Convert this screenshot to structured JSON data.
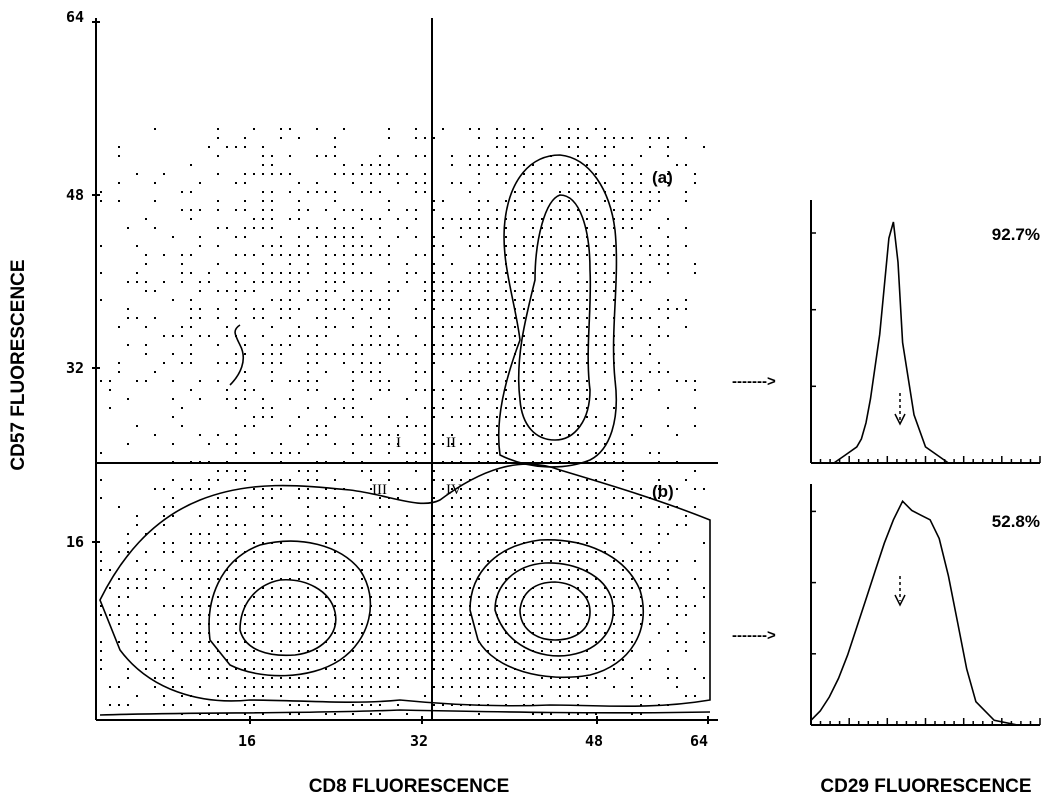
{
  "chart_data": [
    {
      "type": "contour",
      "xlabel": "CD8 FLUORESCENCE",
      "ylabel": "CD57 FLUORESCENCE",
      "xlim": [
        0,
        64
      ],
      "ylim": [
        0,
        64
      ],
      "x_ticks": [
        "16",
        "32",
        "48",
        "64"
      ],
      "y_ticks": [
        "16",
        "32",
        "48",
        "64"
      ],
      "quadrant_gate": {
        "x": 36,
        "y": 24
      },
      "quadrants": [
        "I",
        "II",
        "III",
        "IV"
      ],
      "gates": [
        "(a)",
        "(b)"
      ],
      "arrow": "------->"
    },
    {
      "type": "histogram",
      "gate": "(a)",
      "xlabel": "CD29 FLUORESCENCE",
      "percent_positive": "92.7%",
      "series": [
        {
          "x": [
            0,
            10,
            20,
            30,
            40,
            44,
            48,
            52,
            56,
            60,
            64,
            68,
            72,
            76,
            80,
            90,
            100,
            120,
            140,
            160,
            180,
            200
          ],
          "y": [
            0,
            0,
            0,
            1,
            2,
            3,
            5,
            8,
            12,
            16,
            22,
            28,
            30,
            25,
            15,
            6,
            2,
            0,
            0,
            0,
            0,
            0
          ]
        }
      ]
    },
    {
      "type": "histogram",
      "gate": "(b)",
      "xlabel": "CD29 FLUORESCENCE",
      "percent_positive": "52.8%",
      "series": [
        {
          "x": [
            0,
            8,
            16,
            24,
            32,
            40,
            48,
            56,
            64,
            72,
            80,
            88,
            96,
            104,
            112,
            120,
            128,
            136,
            144,
            160,
            180,
            200
          ],
          "y": [
            1,
            3,
            6,
            10,
            15,
            21,
            27,
            33,
            39,
            44,
            48,
            46,
            45,
            44,
            40,
            32,
            22,
            12,
            5,
            1,
            0,
            0
          ]
        }
      ]
    }
  ]
}
